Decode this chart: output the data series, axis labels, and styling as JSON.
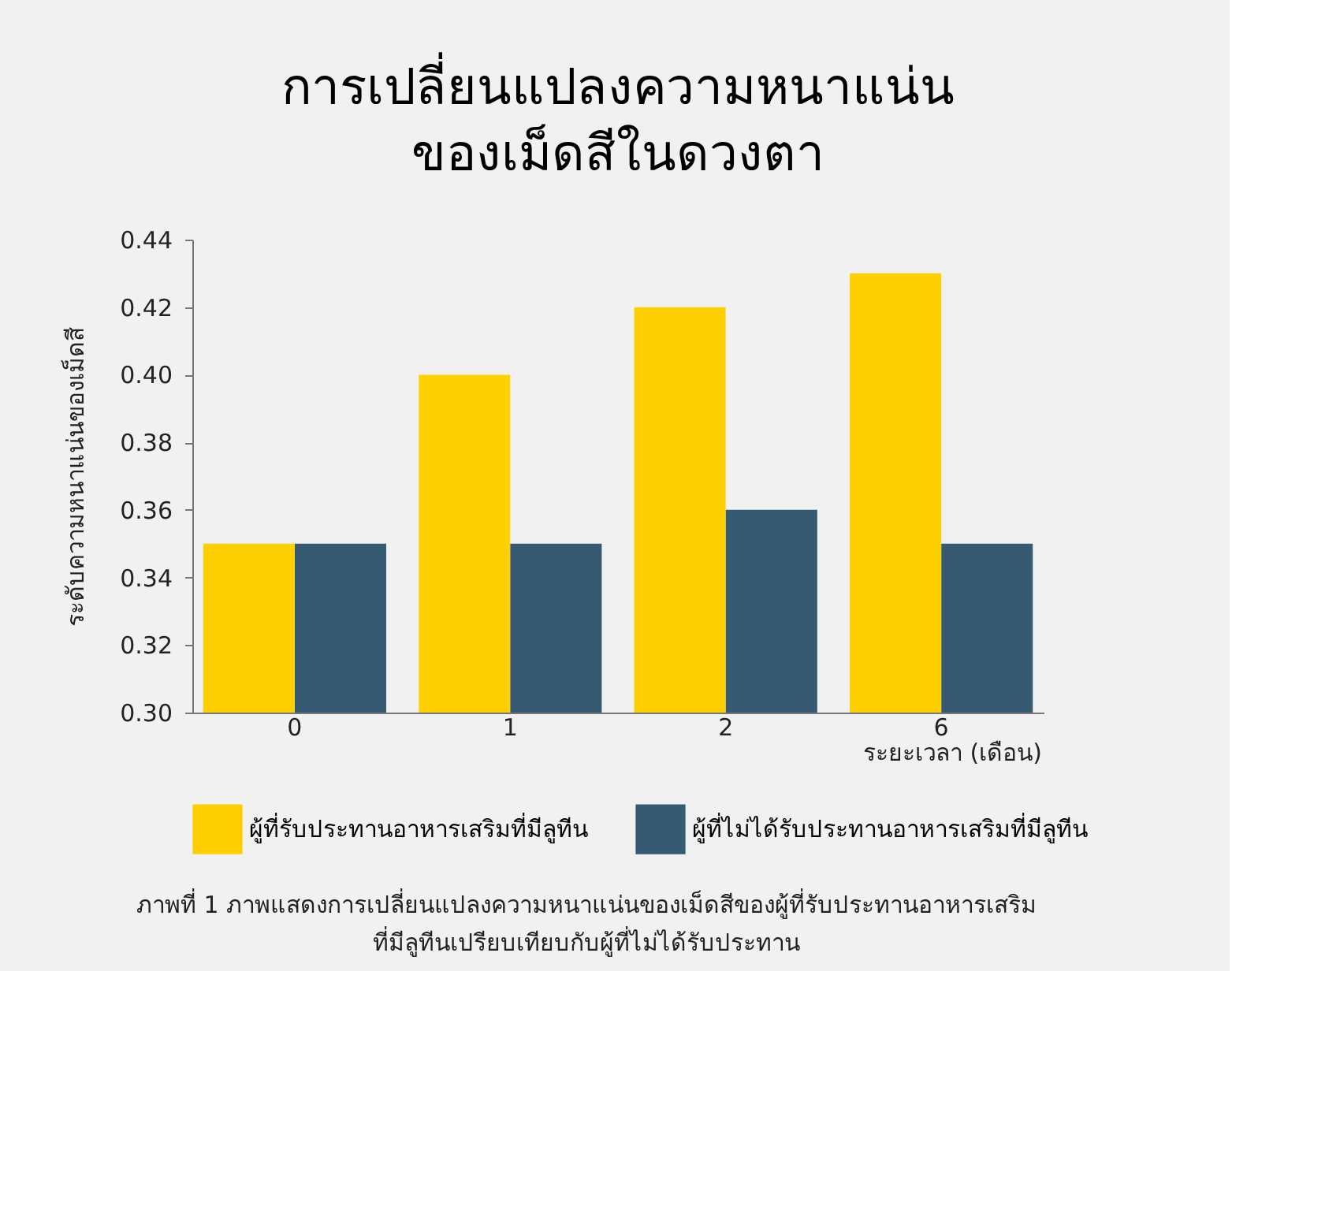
{
  "chart_data": {
    "type": "bar",
    "title": "การเปลี่ยนแปลงความหนาแน่น\nของเม็ดสีในดวงตา",
    "xlabel": "ระยะเวลา (เดือน)",
    "ylabel": "ระดับความหนาแน่นของเม็ดสี",
    "categories": [
      "0",
      "1",
      "2",
      "6"
    ],
    "series": [
      {
        "name": "ผู้ที่รับประทานอาหารเสริมที่มีลูทีน",
        "color": "#ffd000",
        "values": [
          0.35,
          0.4,
          0.42,
          0.43
        ]
      },
      {
        "name": "ผู้ที่ไม่ได้รับประทานอาหารเสริมที่มีลูทีน",
        "color": "#365a72",
        "values": [
          0.35,
          0.35,
          0.36,
          0.35
        ]
      }
    ],
    "ylim": [
      0.3,
      0.44
    ],
    "yticks": [
      {
        "value": 0.3,
        "label": "0.30"
      },
      0.32,
      0.34,
      0.36,
      0.38,
      {
        "value": 0.4,
        "label": "0.40"
      },
      0.42,
      0.44
    ],
    "grid": false,
    "legend": "bottom",
    "annotations": [
      "ภาพที่ 1 ภาพแสดงการเปลี่ยนแปลงความหนาแน่นของเม็ดสีของผู้ที่รับประทานอาหารเสริม\nที่มีลูทีนเปรียบเทียบกับผู้ที่ไม่ได้รับประทาน"
    ]
  }
}
